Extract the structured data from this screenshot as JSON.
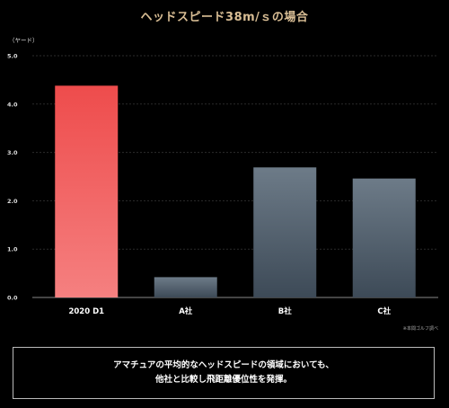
{
  "title": "ヘッドスピード38m/ｓの場合",
  "footnote": "※本間ゴルフ調べ",
  "message": {
    "line1": "アマチュアの平均的なヘッドスピードの領域においても、",
    "line2": "他社と比較し飛距離優位性を発揮。"
  },
  "colors": {
    "title": "#d8bd94",
    "highlight_top": "#ee4c4c",
    "highlight_bottom": "#f58080",
    "other_top": "#6d7b88",
    "other_bottom": "#3d4a57",
    "grid": "#2b2b2b"
  },
  "chart_data": {
    "type": "bar",
    "ylabel": "（ヤード）",
    "ylim": [
      0,
      5
    ],
    "yticks": [
      "0.0",
      "1.0",
      "2.0",
      "3.0",
      "4.0",
      "5.0"
    ],
    "categories": [
      "2020 D1",
      "A社",
      "B社",
      "C社"
    ],
    "values": [
      4.38,
      0.42,
      2.69,
      2.46
    ],
    "highlight_index": 0,
    "grid": true
  }
}
